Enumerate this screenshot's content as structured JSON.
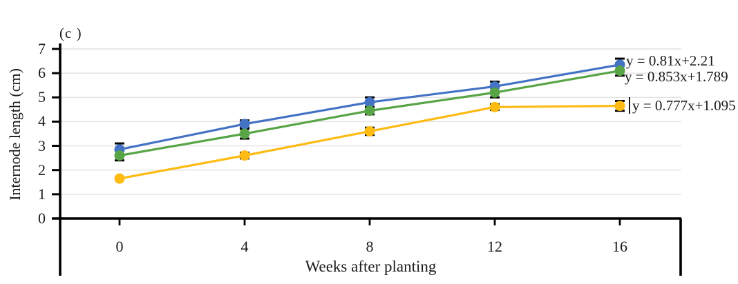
{
  "figure": {
    "panel_label": "(c )",
    "y_axis_label": "Internode length (cm)",
    "x_axis_label": "Weeks after planting"
  },
  "chart_data": {
    "type": "line",
    "title": "",
    "xlabel": "Weeks after planting",
    "ylabel": "Internode length (cm)",
    "categories": [
      0,
      4,
      8,
      12,
      16
    ],
    "y_ticks": [
      0,
      1,
      2,
      3,
      4,
      5,
      6,
      7
    ],
    "ylim": [
      0,
      7
    ],
    "grid": true,
    "grid_color": "#e2e2e2",
    "axis_color": "#000000",
    "error_bar_color": "#000000",
    "legend_position": "none",
    "series": [
      {
        "name": "series-blue",
        "color": "#4472C4",
        "values": [
          2.85,
          3.9,
          4.8,
          5.45,
          6.35
        ],
        "errors": [
          0.25,
          0.15,
          0.2,
          0.2,
          0.25
        ],
        "equation": "y = 0.81x+2.21"
      },
      {
        "name": "series-green",
        "color": "#57A546",
        "values": [
          2.6,
          3.5,
          4.45,
          5.2,
          6.1
        ],
        "errors": [
          0.2,
          0.2,
          0.15,
          0.2,
          0.2
        ],
        "equation": "y = 0.853x+1.789"
      },
      {
        "name": "series-yellow",
        "color": "#FDBB13",
        "values": [
          1.65,
          2.6,
          3.6,
          4.6,
          4.65
        ],
        "errors": [
          0,
          0.12,
          0.15,
          0.12,
          0.2
        ],
        "equation": "y = 0.777x+1.095"
      }
    ]
  }
}
